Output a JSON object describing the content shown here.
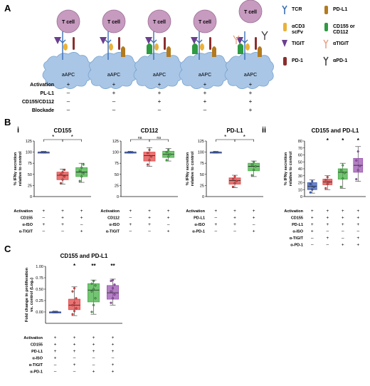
{
  "panel_labels": {
    "A": "A",
    "B": "B",
    "Bi": "i",
    "Bii": "ii",
    "C": "C"
  },
  "panel_a": {
    "cell_label": "T cell",
    "apc_label": "aAPC",
    "row_labels": [
      "Activation",
      "PL-L1",
      "CD155/CD112",
      "Blockade"
    ],
    "rows": [
      [
        "+",
        "+",
        "+",
        "+",
        "+"
      ],
      [
        "–",
        "+",
        "+",
        "+",
        "+"
      ],
      [
        "–",
        "–",
        "+",
        "+",
        "+"
      ],
      [
        "–",
        "–",
        "–",
        "–",
        "+"
      ]
    ],
    "legend": [
      {
        "label": "TCR",
        "icon": "tcr-icon"
      },
      {
        "label": "PD-L1",
        "icon": "pdl1-icon"
      },
      {
        "label": "αCD3\nscFv",
        "icon": "acd3-icon"
      },
      {
        "label": "CD155 or\nCD112",
        "icon": "cd155-icon"
      },
      {
        "label": "TIGIT",
        "icon": "tigit-icon"
      },
      {
        "label": "αTIGIT",
        "icon": "atigit-icon"
      },
      {
        "label": "PD-1",
        "icon": "pd1-icon"
      },
      {
        "label": "αPD-1",
        "icon": "apd1-icon"
      }
    ],
    "colors": {
      "tcell": "#c79ac0",
      "apc": "#a9c6e6",
      "tcr": "#3b6fb6",
      "acd3": "#e9b23a",
      "cd155": "#2e9a42",
      "tigit": "#6b3f8f",
      "pd1": "#8a2e2e",
      "pdl1": "#b37a1e",
      "antibody": "#e8a58a",
      "apd1": "#444444"
    }
  },
  "chart_data": [
    {
      "type": "box",
      "id": "b_i_1",
      "title": "CD155",
      "ylabel": "% IFNγ secretion\nrelative to control",
      "ylim": [
        0,
        125
      ],
      "yticks": [
        0,
        25,
        50,
        75,
        100,
        125
      ],
      "groups": [
        {
          "color": "#3b5bb5",
          "median": 100,
          "q1": 100,
          "q3": 100,
          "min": 100,
          "max": 100,
          "points": [
            100,
            100,
            100,
            100,
            100,
            100
          ]
        },
        {
          "color": "#e04545",
          "median": 48,
          "q1": 38,
          "q3": 55,
          "min": 28,
          "max": 62,
          "points": [
            30,
            38,
            45,
            50,
            55,
            60
          ]
        },
        {
          "color": "#45b045",
          "median": 55,
          "q1": 45,
          "q3": 65,
          "min": 32,
          "max": 75,
          "points": [
            35,
            45,
            52,
            58,
            65,
            72
          ]
        }
      ],
      "sig": [
        {
          "text": "*",
          "from": 0,
          "to": 1
        },
        {
          "text": "*",
          "from": 1,
          "to": 2
        }
      ],
      "row_labels": [
        "Activation",
        "CD155",
        "α-ISO",
        "α-TIGIT"
      ],
      "rows": [
        [
          "+",
          "+",
          "+"
        ],
        [
          "–",
          "+",
          "+"
        ],
        [
          "+",
          "+",
          "–"
        ],
        [
          "–",
          "–",
          "+"
        ]
      ]
    },
    {
      "type": "box",
      "id": "b_i_2",
      "title": "CD112",
      "ylabel": "",
      "ylim": [
        0,
        125
      ],
      "yticks": [
        0,
        25,
        50,
        75,
        100,
        125
      ],
      "groups": [
        {
          "color": "#3b5bb5",
          "median": 100,
          "q1": 100,
          "q3": 100,
          "min": 100,
          "max": 100,
          "points": [
            100,
            100,
            100,
            100,
            100
          ]
        },
        {
          "color": "#e04545",
          "median": 92,
          "q1": 80,
          "q3": 100,
          "min": 68,
          "max": 110,
          "points": [
            72,
            82,
            90,
            98,
            105
          ]
        },
        {
          "color": "#45b045",
          "median": 95,
          "q1": 88,
          "q3": 102,
          "min": 80,
          "max": 108,
          "points": [
            82,
            90,
            95,
            100,
            105
          ]
        }
      ],
      "sig": [
        {
          "text": "ns",
          "from": 0,
          "to": 1
        },
        {
          "text": "ns",
          "from": 1,
          "to": 2
        }
      ],
      "row_labels": [
        "Activation",
        "CD112",
        "α-ISO",
        "α-TIGIT"
      ],
      "rows": [
        [
          "+",
          "+",
          "+"
        ],
        [
          "–",
          "+",
          "+"
        ],
        [
          "+",
          "+",
          "–"
        ],
        [
          "–",
          "–",
          "+"
        ]
      ]
    },
    {
      "type": "box",
      "id": "b_i_3",
      "title": "PD-L1",
      "ylabel": "% IFNγ secretion\nrelative to control",
      "ylim": [
        0,
        125
      ],
      "yticks": [
        0,
        25,
        50,
        75,
        100,
        125
      ],
      "groups": [
        {
          "color": "#3b5bb5",
          "median": 100,
          "q1": 100,
          "q3": 100,
          "min": 100,
          "max": 100,
          "points": [
            100,
            100,
            100,
            100,
            100
          ]
        },
        {
          "color": "#e04545",
          "median": 36,
          "q1": 28,
          "q3": 42,
          "min": 20,
          "max": 48,
          "points": [
            22,
            30,
            35,
            40,
            45
          ]
        },
        {
          "color": "#45b045",
          "median": 68,
          "q1": 58,
          "q3": 75,
          "min": 45,
          "max": 80,
          "points": [
            48,
            60,
            68,
            72,
            78
          ]
        }
      ],
      "sig": [
        {
          "text": "*",
          "from": 0,
          "to": 1
        },
        {
          "text": "*",
          "from": 1,
          "to": 2
        }
      ],
      "row_labels": [
        "Activation",
        "PD-L1",
        "α-ISO",
        "α-PD-1"
      ],
      "rows": [
        [
          "+",
          "+",
          "+"
        ],
        [
          "–",
          "+",
          "+"
        ],
        [
          "+",
          "+",
          "–"
        ],
        [
          "–",
          "–",
          "+"
        ]
      ]
    },
    {
      "type": "box",
      "id": "b_ii",
      "title": "CD155 and PD-L1",
      "ylabel": "% IFNγ secretion\nrelative to control",
      "ylim": [
        0,
        80
      ],
      "yticks": [
        0,
        10,
        20,
        30,
        40,
        50,
        60,
        70,
        80
      ],
      "groups": [
        {
          "color": "#3b5bb5",
          "median": 15,
          "q1": 10,
          "q3": 20,
          "min": 5,
          "max": 24,
          "points": [
            6,
            10,
            14,
            18,
            22
          ]
        },
        {
          "color": "#e04545",
          "median": 21,
          "q1": 17,
          "q3": 25,
          "min": 10,
          "max": 30,
          "points": [
            12,
            18,
            21,
            24,
            28
          ]
        },
        {
          "color": "#45b045",
          "median": 35,
          "q1": 25,
          "q3": 40,
          "min": 12,
          "max": 48,
          "points": [
            14,
            26,
            34,
            38,
            45
          ]
        },
        {
          "color": "#9a55b0",
          "median": 45,
          "q1": 35,
          "q3": 55,
          "min": 22,
          "max": 72,
          "points": [
            25,
            38,
            44,
            52,
            65
          ]
        }
      ],
      "sig_marks": [
        "",
        "*",
        "*",
        "*"
      ],
      "row_labels": [
        "Activation",
        "CD155",
        "PD-L1",
        "α-ISO",
        "α-TIGIT",
        "α-PD-1"
      ],
      "rows": [
        [
          "+",
          "+",
          "+",
          "+"
        ],
        [
          "+",
          "+",
          "+",
          "+"
        ],
        [
          "+",
          "+",
          "+",
          "+"
        ],
        [
          "+",
          "–",
          "–",
          "–"
        ],
        [
          "–",
          "+",
          "–",
          "+"
        ],
        [
          "–",
          "–",
          "+",
          "+"
        ]
      ]
    },
    {
      "type": "box",
      "id": "c",
      "title": "CD155 and PD-L1",
      "ylabel": "Fold change in proliferation\nvs. control (Log₂)",
      "ylim": [
        -0.25,
        1.0
      ],
      "yticks": [
        0.0,
        0.25,
        0.5,
        0.75,
        1.0
      ],
      "ytick_labels": [
        "0.00",
        "0.25",
        "0.50",
        "0.75",
        "1.00"
      ],
      "groups": [
        {
          "color": "#3b5bb5",
          "median": 0.0,
          "q1": 0.0,
          "q3": 0.0,
          "min": 0.0,
          "max": 0.0,
          "points": [
            0,
            0,
            0,
            0,
            0,
            0,
            0,
            0
          ]
        },
        {
          "color": "#e04545",
          "median": 0.15,
          "q1": 0.05,
          "q3": 0.28,
          "min": -0.08,
          "max": 0.55,
          "points": [
            -0.05,
            0.02,
            0.08,
            0.15,
            0.2,
            0.3,
            0.45,
            0.52
          ]
        },
        {
          "color": "#45b045",
          "median": 0.48,
          "q1": 0.22,
          "q3": 0.62,
          "min": -0.05,
          "max": 0.7,
          "points": [
            0.0,
            0.15,
            0.3,
            0.45,
            0.5,
            0.58,
            0.62,
            0.68
          ]
        },
        {
          "color": "#9a55b0",
          "median": 0.42,
          "q1": 0.28,
          "q3": 0.58,
          "min": 0.15,
          "max": 0.72,
          "points": [
            0.2,
            0.3,
            0.38,
            0.45,
            0.52,
            0.6,
            0.68,
            0.7
          ]
        }
      ],
      "sig_marks": [
        "",
        "*",
        "**",
        "**"
      ],
      "row_labels": [
        "Activation",
        "CD155",
        "PD-L1",
        "α-ISO",
        "α-TIGIT",
        "α-PD-1"
      ],
      "rows": [
        [
          "+",
          "+",
          "+",
          "+"
        ],
        [
          "+",
          "+",
          "+",
          "+"
        ],
        [
          "+",
          "+",
          "+",
          "+"
        ],
        [
          "+",
          "–",
          "–",
          "–"
        ],
        [
          "–",
          "+",
          "–",
          "+"
        ],
        [
          "–",
          "–",
          "+",
          "+"
        ]
      ]
    }
  ]
}
